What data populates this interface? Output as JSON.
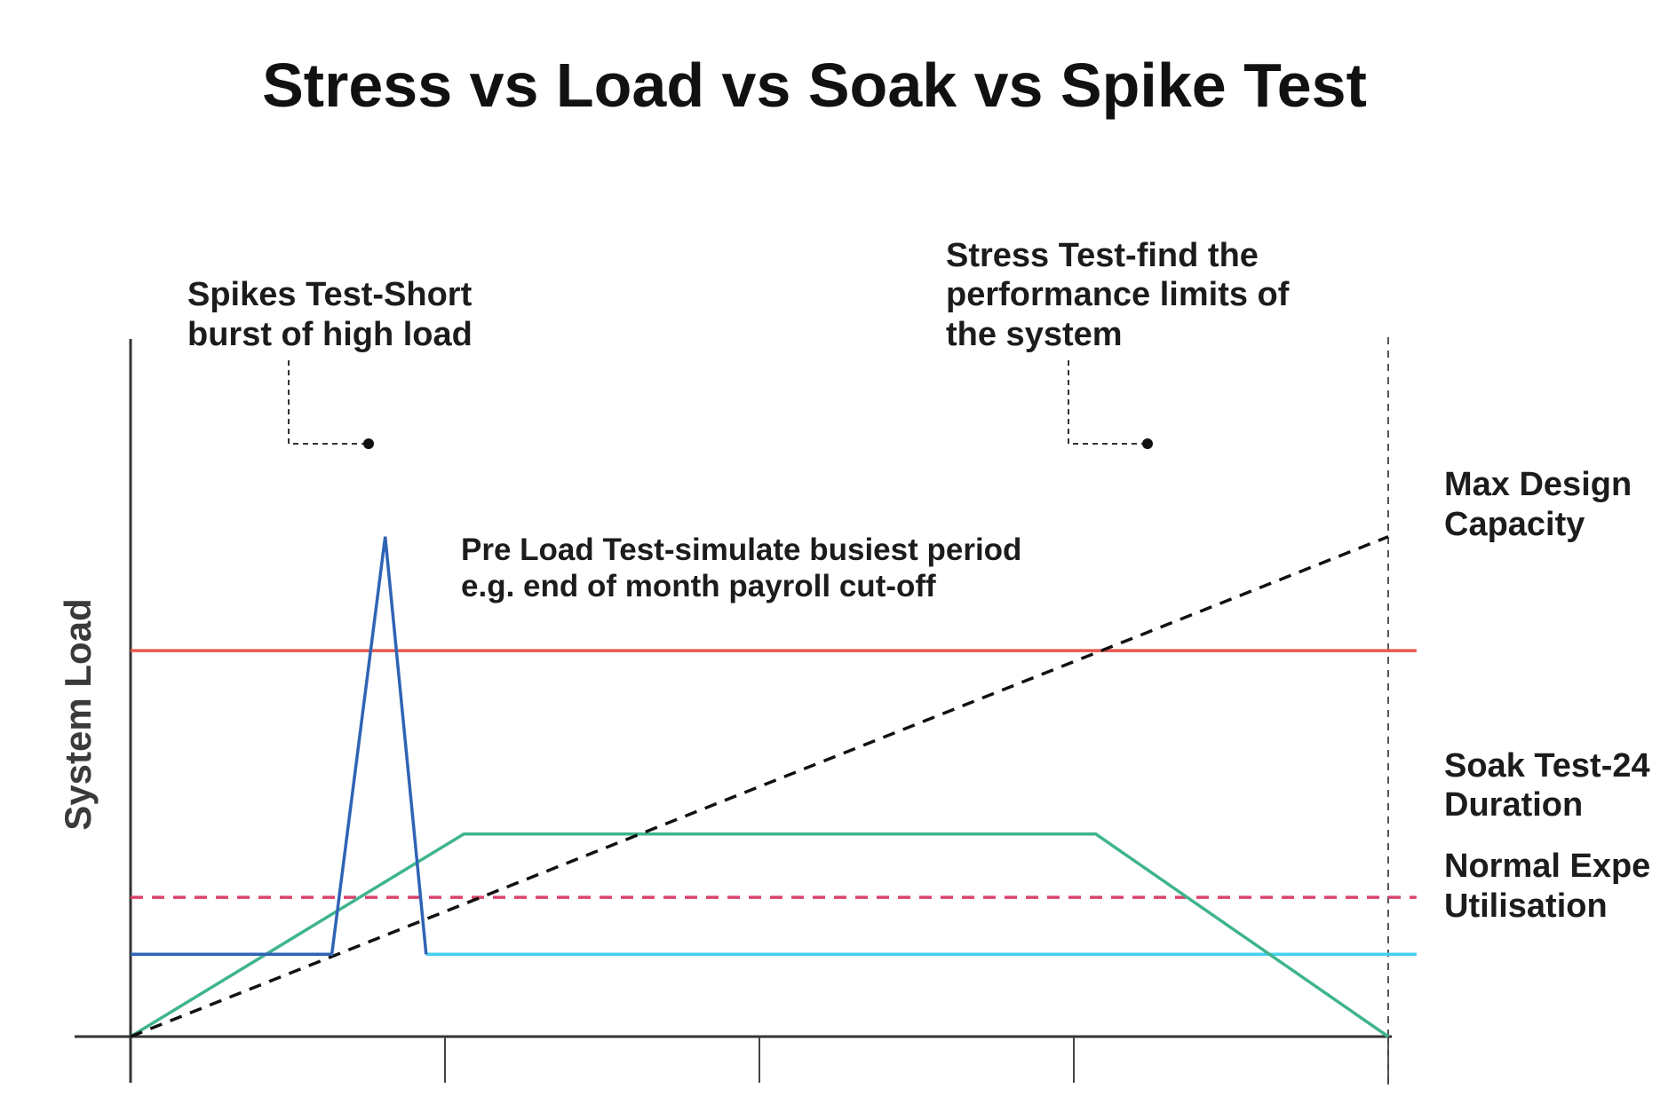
{
  "chart_data": {
    "type": "line",
    "title": "Stress vs Load vs Soak vs Spike Test",
    "xlabel": "",
    "ylabel": "System Load",
    "xlim": [
      0,
      4
    ],
    "ylim": [
      0,
      10
    ],
    "x_ticks": [
      0,
      1,
      2,
      3,
      4
    ],
    "grid": false,
    "legend": "none",
    "series": [
      {
        "key": "spike",
        "color": "#2f64b5",
        "dashed": false,
        "points": [
          [
            0,
            1.3
          ],
          [
            0.64,
            1.3
          ],
          [
            0.81,
            7.9
          ],
          [
            0.94,
            1.3
          ]
        ]
      },
      {
        "key": "load",
        "color": "#3fb48f",
        "dashed": false,
        "points": [
          [
            0,
            0
          ],
          [
            1.06,
            3.2
          ],
          [
            3.07,
            3.2
          ],
          [
            4,
            0
          ]
        ]
      },
      {
        "key": "stress",
        "color": "#111111",
        "dashed": true,
        "points": [
          [
            0,
            0
          ],
          [
            4,
            7.9
          ]
        ]
      },
      {
        "key": "max_design",
        "color": "#e8584c",
        "dashed": false,
        "points": [
          [
            0,
            6.1
          ],
          [
            4.09,
            6.1
          ]
        ]
      },
      {
        "key": "soak",
        "color": "#d9446b",
        "dashed": true,
        "points": [
          [
            0,
            2.2
          ],
          [
            4.09,
            2.2
          ]
        ]
      },
      {
        "key": "normal",
        "color": "#45d0ec",
        "dashed": false,
        "points": [
          [
            0.94,
            1.3
          ],
          [
            4.09,
            1.3
          ]
        ]
      }
    ],
    "annotations": {
      "spike": [
        "Spikes Test-Short",
        "burst of high load"
      ],
      "stress": [
        "Stress Test-find the",
        "performance limits of",
        "the system"
      ],
      "load": [
        "Pre Load Test-simulate busiest period",
        "e.g. end of month payroll cut-off"
      ]
    },
    "side_labels": {
      "max_design": [
        "Max Design",
        "Capacity"
      ],
      "soak": [
        "Soak Test-24",
        "Duration"
      ],
      "normal": [
        "Normal Expe",
        "Utilisation"
      ]
    }
  }
}
